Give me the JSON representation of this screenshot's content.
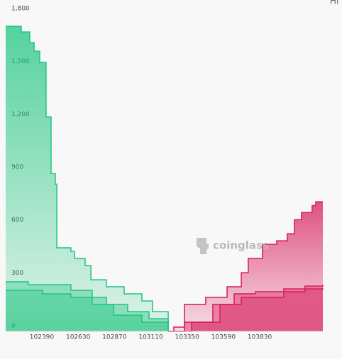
{
  "chart_data": {
    "type": "depth",
    "corner_text": "Hi",
    "watermark": "coinglass",
    "xlim": [
      102151,
      104247
    ],
    "ylim": [
      0,
      1800
    ],
    "xticks": [
      102390,
      102630,
      102870,
      103110,
      103350,
      103590,
      103830
    ],
    "yticks": [
      0,
      {
        "value": 300,
        "label": "300"
      },
      {
        "value": 600,
        "label": "600"
      },
      {
        "value": 900,
        "label": "900"
      },
      {
        "value": 1200,
        "label": "1,200"
      },
      {
        "value": 1500,
        "label": "1,500"
      },
      {
        "value": 1800,
        "label": "1,800"
      }
    ],
    "series": [
      {
        "color": "#1fc580",
        "x": [
          102151,
          102254,
          102310,
          102339,
          102376,
          102418,
          102451,
          102479,
          102489,
          102582,
          102606,
          102676,
          102714,
          102817,
          102934,
          103051,
          103121,
          103225
        ],
        "values": [
          1731,
          1699,
          1639,
          1590,
          1526,
          1217,
          896,
          835,
          474,
          454,
          414,
          373,
          293,
          253,
          213,
          173,
          112,
          0
        ]
      },
      {
        "color": "#1fc580",
        "x": [
          102151,
          102301,
          102582,
          102723,
          102817,
          102957,
          103098,
          103225
        ],
        "values": [
          281,
          265,
          233,
          193,
          153,
          112,
          72,
          0
        ]
      },
      {
        "color": "#1fc580",
        "x": [
          102151,
          102395,
          102582,
          102723,
          102864,
          103051,
          103225
        ],
        "values": [
          233,
          213,
          193,
          153,
          92,
          52,
          0
        ]
      },
      {
        "color": "#d81b5a",
        "x": [
          103225,
          103262,
          103332,
          103473,
          103614,
          103708,
          103754,
          103848,
          103942,
          104012,
          104059,
          104106,
          104176,
          104200,
          104247
        ],
        "values": [
          0,
          24,
          153,
          193,
          253,
          333,
          414,
          494,
          514,
          554,
          634,
          675,
          715,
          735,
          735
        ]
      },
      {
        "color": "#d81b5a",
        "x": [
          103225,
          103332,
          103520,
          103661,
          103802,
          103989,
          104129,
          104247
        ],
        "values": [
          0,
          52,
          153,
          213,
          225,
          241,
          257,
          265
        ]
      },
      {
        "color": "#d81b5a",
        "x": [
          103225,
          103379,
          103567,
          103708,
          103989,
          104129,
          104247
        ],
        "values": [
          0,
          52,
          153,
          193,
          225,
          241,
          245
        ]
      }
    ]
  }
}
